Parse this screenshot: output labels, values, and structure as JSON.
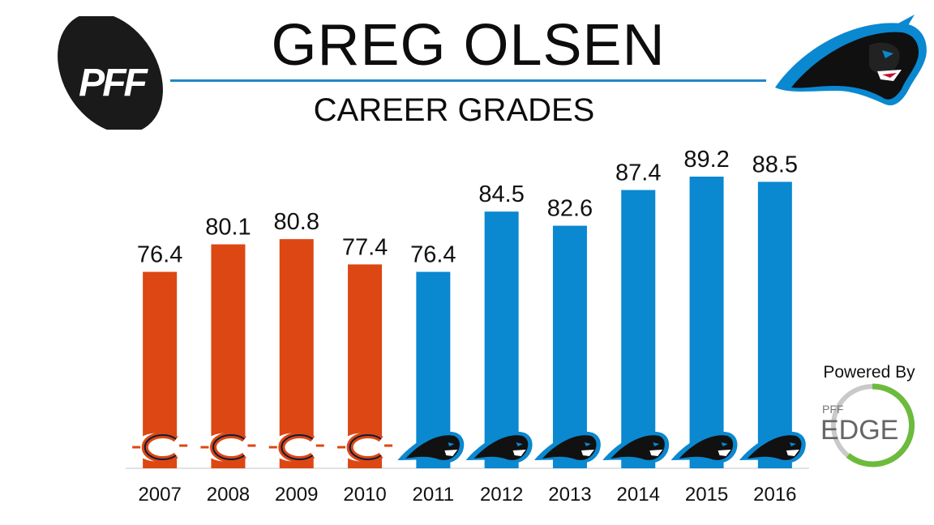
{
  "header": {
    "title": "GREG OLSEN",
    "subtitle": "CAREER GRADES"
  },
  "logos": {
    "brand_logo": "PFF",
    "team_logo_icon": "panther-head-icon",
    "powered_by": "Powered By",
    "edge_brand_small": "PFF",
    "edge_brand_large": "EDGE"
  },
  "colors": {
    "bears_orange": "#dc4713",
    "panthers_blue": "#0a88d0",
    "rule_blue": "#1f88c8",
    "edge_green": "#6cbb3c"
  },
  "chart_data": {
    "type": "bar",
    "title": "CAREER GRADES",
    "categories": [
      "2007",
      "2008",
      "2009",
      "2010",
      "2011",
      "2012",
      "2013",
      "2014",
      "2015",
      "2016"
    ],
    "values": [
      76.4,
      80.1,
      80.8,
      77.4,
      76.4,
      84.5,
      82.6,
      87.4,
      89.2,
      88.5
    ],
    "data_labels": [
      "76.4",
      "80.1",
      "80.8",
      "77.4",
      "76.4",
      "84.5",
      "82.6",
      "87.4",
      "89.2",
      "88.5"
    ],
    "bar_teams": [
      "bears",
      "bears",
      "bears",
      "bears",
      "panthers",
      "panthers",
      "panthers",
      "panthers",
      "panthers",
      "panthers"
    ],
    "team_icons": {
      "bears": "bears-c-logo-icon",
      "panthers": "panther-head-icon"
    },
    "team_colors": {
      "bears": "#dc4713",
      "panthers": "#0a88d0"
    },
    "xlabel": "",
    "ylabel": "",
    "ylim": [
      50,
      90
    ],
    "grid": false,
    "legend": "none"
  }
}
